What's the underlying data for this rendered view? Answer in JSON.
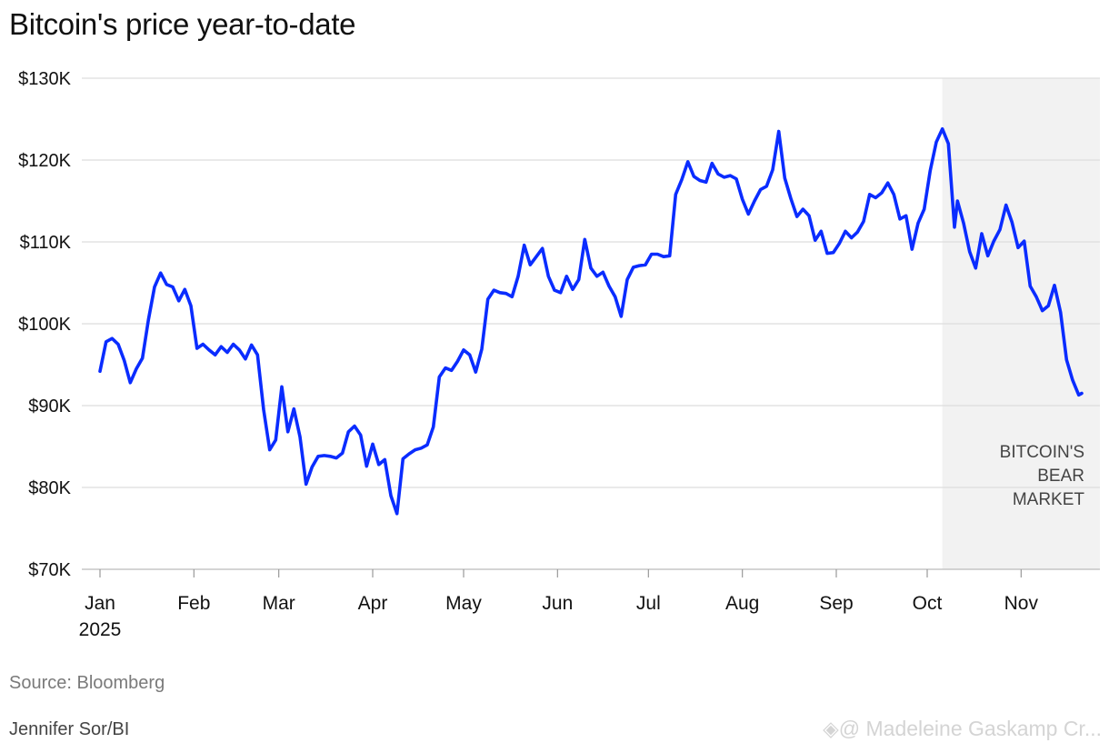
{
  "title": "Bitcoin's price year-to-date",
  "source": "Source: Bloomberg",
  "byline": "Jennifer Sor/BI",
  "watermark": "◈@ Madeleine Gaskamp Cr...",
  "chart_data": {
    "type": "line",
    "title": "Bitcoin's price year-to-date",
    "xlabel": "",
    "ylabel": "",
    "x_type": "date",
    "x_range": [
      "2025-01-01",
      "2025-11-21"
    ],
    "ylim": [
      70000,
      130000
    ],
    "y_ticks": [
      70000,
      80000,
      90000,
      100000,
      110000,
      120000,
      130000
    ],
    "y_tick_labels": [
      "$70K",
      "$80K",
      "$90K",
      "$100K",
      "$110K",
      "$120K",
      "$130K"
    ],
    "x_ticks": [
      "2025-01-01",
      "2025-02-01",
      "2025-03-01",
      "2025-04-01",
      "2025-05-01",
      "2025-06-01",
      "2025-07-01",
      "2025-08-01",
      "2025-09-01",
      "2025-10-01",
      "2025-11-01"
    ],
    "x_tick_labels": [
      "Jan",
      "Feb",
      "Mar",
      "Apr",
      "May",
      "Jun",
      "Jul",
      "Aug",
      "Sep",
      "Oct",
      "Nov"
    ],
    "x_year_label": "2025",
    "grid": "horizontal",
    "legend": "none",
    "line_color": "#0a2cff",
    "shaded_region": {
      "start": "2025-10-06",
      "end": "2025-11-21",
      "color": "#f2f2f2",
      "label": [
        "BITCOIN'S",
        "BEAR",
        "MARKET"
      ]
    },
    "series": [
      {
        "x": [
          "2025-01-01",
          "2025-01-03",
          "2025-01-05",
          "2025-01-07",
          "2025-01-09",
          "2025-01-11",
          "2025-01-13",
          "2025-01-15",
          "2025-01-17",
          "2025-01-19",
          "2025-01-21",
          "2025-01-23",
          "2025-01-25",
          "2025-01-27",
          "2025-01-29",
          "2025-01-31",
          "2025-02-02",
          "2025-02-04",
          "2025-02-06",
          "2025-02-08",
          "2025-02-10",
          "2025-02-12",
          "2025-02-14",
          "2025-02-16",
          "2025-02-18",
          "2025-02-20",
          "2025-02-22",
          "2025-02-24",
          "2025-02-26",
          "2025-02-28",
          "2025-03-02",
          "2025-03-04",
          "2025-03-06",
          "2025-03-08",
          "2025-03-10",
          "2025-03-12",
          "2025-03-14",
          "2025-03-16",
          "2025-03-18",
          "2025-03-20",
          "2025-03-22",
          "2025-03-24",
          "2025-03-26",
          "2025-03-28",
          "2025-03-30",
          "2025-04-01",
          "2025-04-03",
          "2025-04-05",
          "2025-04-07",
          "2025-04-09",
          "2025-04-11",
          "2025-04-13",
          "2025-04-15",
          "2025-04-17",
          "2025-04-19",
          "2025-04-21",
          "2025-04-23",
          "2025-04-25",
          "2025-04-27",
          "2025-04-29",
          "2025-05-01",
          "2025-05-03",
          "2025-05-05",
          "2025-05-07",
          "2025-05-09",
          "2025-05-11",
          "2025-05-13",
          "2025-05-15",
          "2025-05-17",
          "2025-05-19",
          "2025-05-21",
          "2025-05-23",
          "2025-05-25",
          "2025-05-27",
          "2025-05-29",
          "2025-05-31",
          "2025-06-02",
          "2025-06-04",
          "2025-06-06",
          "2025-06-08",
          "2025-06-10",
          "2025-06-12",
          "2025-06-14",
          "2025-06-16",
          "2025-06-18",
          "2025-06-20",
          "2025-06-22",
          "2025-06-24",
          "2025-06-26",
          "2025-06-28",
          "2025-06-30",
          "2025-07-02",
          "2025-07-04",
          "2025-07-06",
          "2025-07-08",
          "2025-07-10",
          "2025-07-12",
          "2025-07-14",
          "2025-07-16",
          "2025-07-18",
          "2025-07-20",
          "2025-07-22",
          "2025-07-24",
          "2025-07-26",
          "2025-07-28",
          "2025-07-30",
          "2025-08-01",
          "2025-08-03",
          "2025-08-05",
          "2025-08-07",
          "2025-08-09",
          "2025-08-11",
          "2025-08-13",
          "2025-08-15",
          "2025-08-17",
          "2025-08-19",
          "2025-08-21",
          "2025-08-23",
          "2025-08-25",
          "2025-08-27",
          "2025-08-29",
          "2025-08-31",
          "2025-09-02",
          "2025-09-04",
          "2025-09-06",
          "2025-09-08",
          "2025-09-10",
          "2025-09-12",
          "2025-09-14",
          "2025-09-16",
          "2025-09-18",
          "2025-09-20",
          "2025-09-22",
          "2025-09-24",
          "2025-09-26",
          "2025-09-28",
          "2025-09-30",
          "2025-10-02",
          "2025-10-04",
          "2025-10-06",
          "2025-10-08",
          "2025-10-10",
          "2025-10-11",
          "2025-10-13",
          "2025-10-15",
          "2025-10-17",
          "2025-10-19",
          "2025-10-21",
          "2025-10-23",
          "2025-10-25",
          "2025-10-27",
          "2025-10-29",
          "2025-10-31",
          "2025-11-02",
          "2025-11-04",
          "2025-11-06",
          "2025-11-08",
          "2025-11-10",
          "2025-11-12",
          "2025-11-14",
          "2025-11-16",
          "2025-11-18",
          "2025-11-20",
          "2025-11-21"
        ],
        "y": [
          94200,
          97800,
          98200,
          97500,
          95500,
          92800,
          94500,
          95800,
          100500,
          104500,
          106200,
          104800,
          104500,
          102800,
          104200,
          102200,
          97000,
          97500,
          96800,
          96200,
          97200,
          96500,
          97500,
          96800,
          95700,
          97400,
          96200,
          89500,
          84600,
          85800,
          92300,
          86800,
          89600,
          86200,
          80400,
          82500,
          83800,
          83900,
          83800,
          83600,
          84200,
          86800,
          87500,
          86400,
          82600,
          85300,
          82800,
          83400,
          79000,
          76800,
          83500,
          84100,
          84600,
          84800,
          85200,
          87400,
          93500,
          94600,
          94300,
          95400,
          96800,
          96200,
          94100,
          96900,
          103000,
          104100,
          103800,
          103700,
          103300,
          105800,
          109600,
          107200,
          108200,
          109200,
          105800,
          104100,
          103800,
          105800,
          104200,
          105400,
          110300,
          106800,
          105800,
          106300,
          104600,
          103300,
          100900,
          105400,
          106900,
          107100,
          107200,
          108500,
          108500,
          108200,
          108300,
          115800,
          117600,
          119800,
          118000,
          117500,
          117300,
          119600,
          118300,
          117900,
          118100,
          117700,
          115200,
          113400,
          115000,
          116400,
          116800,
          118800,
          123500,
          117800,
          115300,
          113100,
          114000,
          113200,
          110200,
          111300,
          108600,
          108700,
          109800,
          111300,
          110500,
          111200,
          112500,
          115800,
          115400,
          116000,
          117200,
          115800,
          112800,
          113200,
          109100,
          112300,
          114000,
          118700,
          122200,
          123800,
          122000,
          111800,
          115000,
          112300,
          108800,
          106800,
          111000,
          108300,
          110100,
          111500,
          114500,
          112400,
          109300,
          110100,
          104600,
          103300,
          101600,
          102200,
          104700,
          101400,
          95600,
          93100,
          91300,
          91500
        ]
      }
    ]
  }
}
